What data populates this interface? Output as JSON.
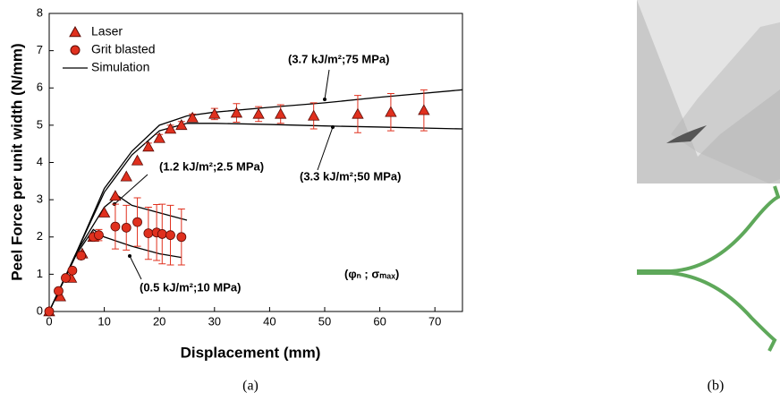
{
  "chart_data": {
    "type": "scatter",
    "xlabel": "Displacement (mm)",
    "ylabel": "Peel Force per unit width (N/mm)",
    "xlim": [
      0,
      75
    ],
    "xticks": [
      0,
      10,
      20,
      30,
      40,
      50,
      60,
      70
    ],
    "ylim": [
      0,
      8
    ],
    "yticks": [
      0,
      1,
      2,
      3,
      4,
      5,
      6,
      7,
      8
    ],
    "series": [
      {
        "name": "Laser",
        "marker": "triangle",
        "color": "#e0301e",
        "x": [
          0,
          2,
          4,
          6,
          8,
          10,
          12,
          14,
          16,
          18,
          20,
          22,
          24,
          26,
          30,
          34,
          38,
          42,
          48,
          56,
          62,
          68
        ],
        "values": [
          0,
          0.4,
          0.9,
          1.55,
          2.0,
          2.65,
          3.1,
          3.62,
          4.05,
          4.42,
          4.65,
          4.9,
          5.0,
          5.2,
          5.3,
          5.33,
          5.3,
          5.3,
          5.25,
          5.3,
          5.35,
          5.4
        ],
        "errors": [
          0,
          0,
          0,
          0,
          0,
          0,
          0,
          0,
          0,
          0.1,
          0.1,
          0.1,
          0.1,
          0.1,
          0.15,
          0.25,
          0.2,
          0.25,
          0.35,
          0.5,
          0.5,
          0.55
        ]
      },
      {
        "name": "Grit blasted",
        "marker": "circle",
        "color": "#e0301e",
        "x": [
          0,
          1.7,
          3,
          4.2,
          5.8,
          8,
          9,
          12,
          14,
          16,
          18,
          19.5,
          20.5,
          22,
          24
        ],
        "values": [
          0,
          0.55,
          0.9,
          1.1,
          1.5,
          2.0,
          2.05,
          2.28,
          2.25,
          2.4,
          2.1,
          2.12,
          2.08,
          2.05,
          2.0
        ],
        "errors": [
          0,
          0,
          0,
          0,
          0.1,
          0.1,
          0.15,
          0.6,
          0.6,
          0.65,
          0.7,
          0.75,
          0.8,
          0.8,
          0.75
        ]
      }
    ],
    "simulation": {
      "name": "Simulation",
      "color": "#000000",
      "curves": [
        {
          "label": "(3.7 kJ/m²;75 MPa)",
          "x": [
            0,
            5,
            10,
            15,
            20,
            25,
            30,
            40,
            50,
            60,
            75
          ],
          "values": [
            0,
            1.6,
            3.3,
            4.3,
            5.0,
            5.25,
            5.35,
            5.48,
            5.6,
            5.75,
            5.95
          ]
        },
        {
          "label": "(3.3 kJ/m²;50 MPa)",
          "x": [
            0,
            5,
            10,
            15,
            20,
            25,
            30,
            40,
            50,
            60,
            75
          ],
          "values": [
            0,
            1.6,
            3.2,
            4.2,
            4.85,
            5.05,
            5.05,
            5.02,
            4.98,
            4.95,
            4.9
          ]
        },
        {
          "label": "(1.2 kJ/m²;2.5 MPa)",
          "x": [
            0,
            5,
            10,
            12.5,
            15,
            20,
            25
          ],
          "values": [
            0,
            1.6,
            2.8,
            3.1,
            2.85,
            2.65,
            2.45
          ]
        },
        {
          "label": "(0.5 kJ/m²;10 MPa)",
          "x": [
            0,
            5,
            8,
            10,
            15,
            20,
            24
          ],
          "values": [
            0,
            1.55,
            2.2,
            2.0,
            1.75,
            1.55,
            1.45
          ]
        }
      ]
    },
    "note": "(φₙ ; σₘₐₓ)",
    "panel_labels": [
      "(a)",
      "(b)"
    ]
  }
}
